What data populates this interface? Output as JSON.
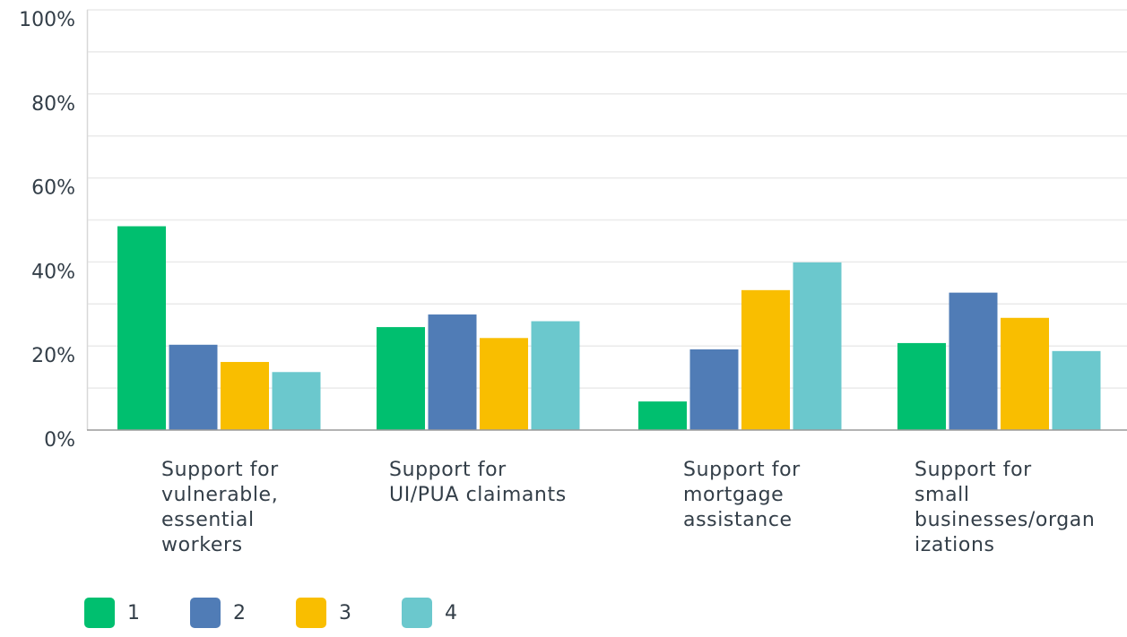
{
  "chart_data": {
    "type": "bar",
    "title": "",
    "xlabel": "",
    "ylabel": "",
    "ylim": [
      0,
      100
    ],
    "yticks": [
      "0%",
      "20%",
      "40%",
      "60%",
      "80%",
      "100%"
    ],
    "grid": true,
    "legend_position": "bottom-left",
    "categories": [
      "Support for vulnerable, essential workers",
      "Support for UI/PUA claimants",
      "Support for mortgage assistance",
      "Support for small businesses/organizations"
    ],
    "category_label_lines": [
      "Support for\nvulnerable,\nessential\nworkers",
      "Support for\nUI/PUA claimants",
      "Support for\nmortgage\nassistance",
      "Support for\nsmall\nbusinesses/organ\nizations"
    ],
    "series": [
      {
        "name": "1",
        "color": "#00bf6f",
        "values": [
          48.5,
          24.5,
          6.8,
          20.7
        ]
      },
      {
        "name": "2",
        "color": "#507cb6",
        "values": [
          20.3,
          27.5,
          19.2,
          32.7
        ]
      },
      {
        "name": "3",
        "color": "#f9be00",
        "values": [
          16.2,
          21.9,
          33.3,
          26.7
        ]
      },
      {
        "name": "4",
        "color": "#6bc8cd",
        "values": [
          13.8,
          25.9,
          39.9,
          18.8
        ]
      }
    ]
  }
}
